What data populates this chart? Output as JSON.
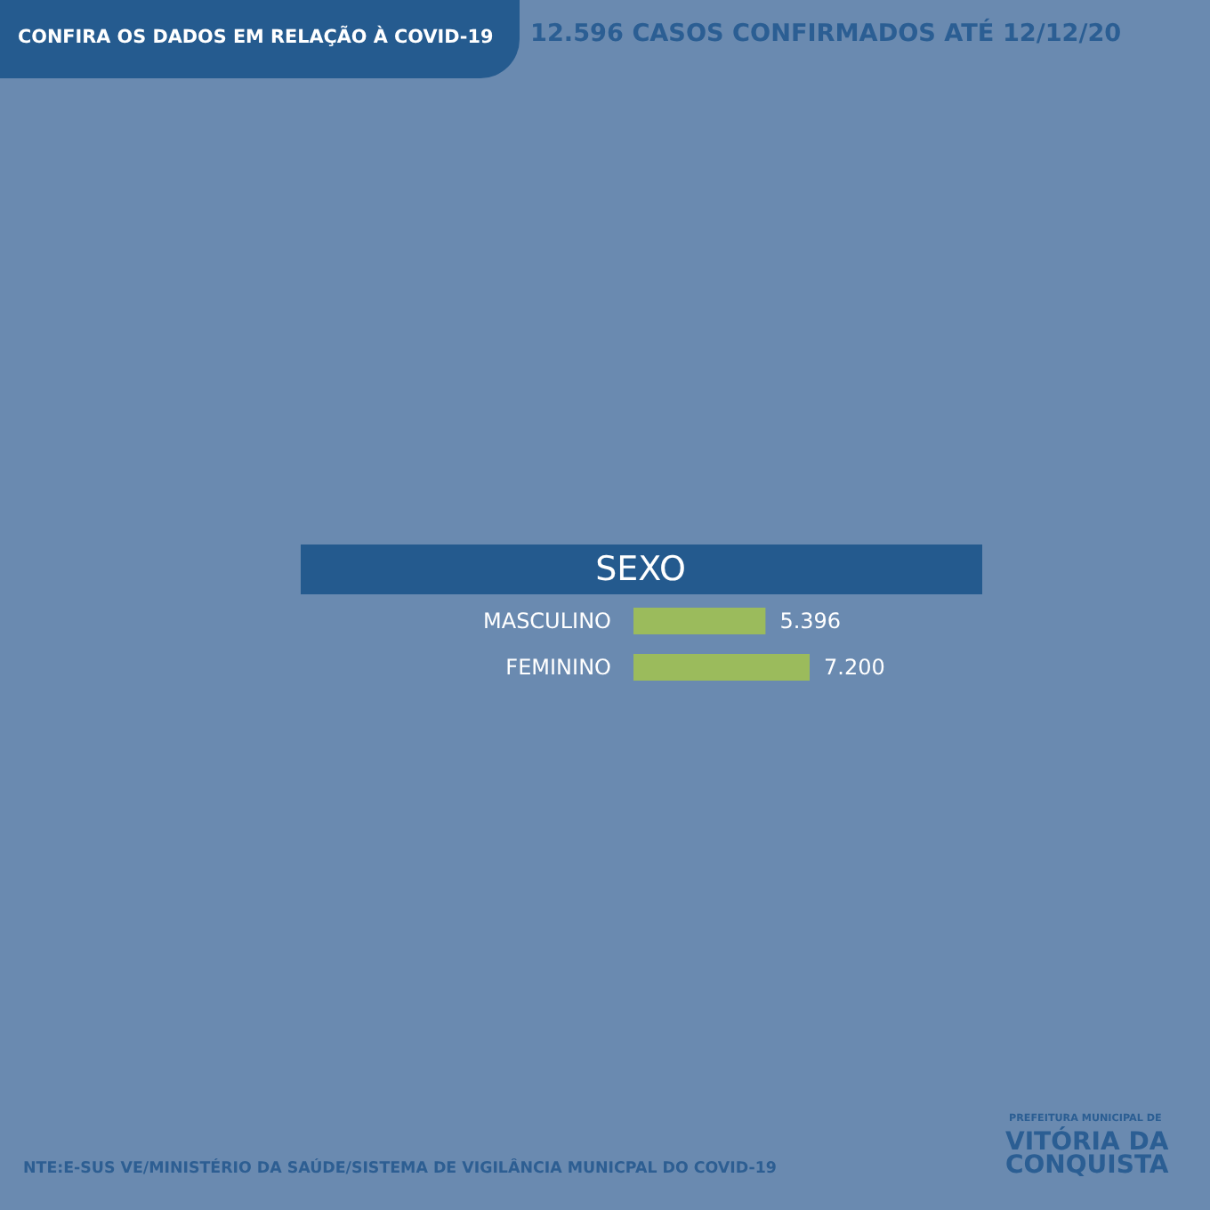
{
  "chart_data": {
    "type": "bar",
    "orientation": "horizontal",
    "title": "SEXO",
    "categories": [
      "MASCULINO",
      "FEMININO"
    ],
    "values": [
      5396,
      7200
    ],
    "value_labels": [
      "5.396",
      "7.200"
    ],
    "color": "#9bbb5c",
    "tick_labels": "y",
    "annotations": [
      "CONFIRA OS DADOS EM RELAÇÃO À COVID-19",
      "12.596 CASOS CONFIRMADOS ATÉ 12/12/20",
      "NTE:E-SUS VE/MINISTÉRIO DA SAÚDE/SISTEMA DE VIGILÂNCIA MUNICPAL DO COVID-19",
      "PREFEITURA MUNICIPAL DE",
      "VITÓRIA DA CONQUISTA"
    ]
  }
}
